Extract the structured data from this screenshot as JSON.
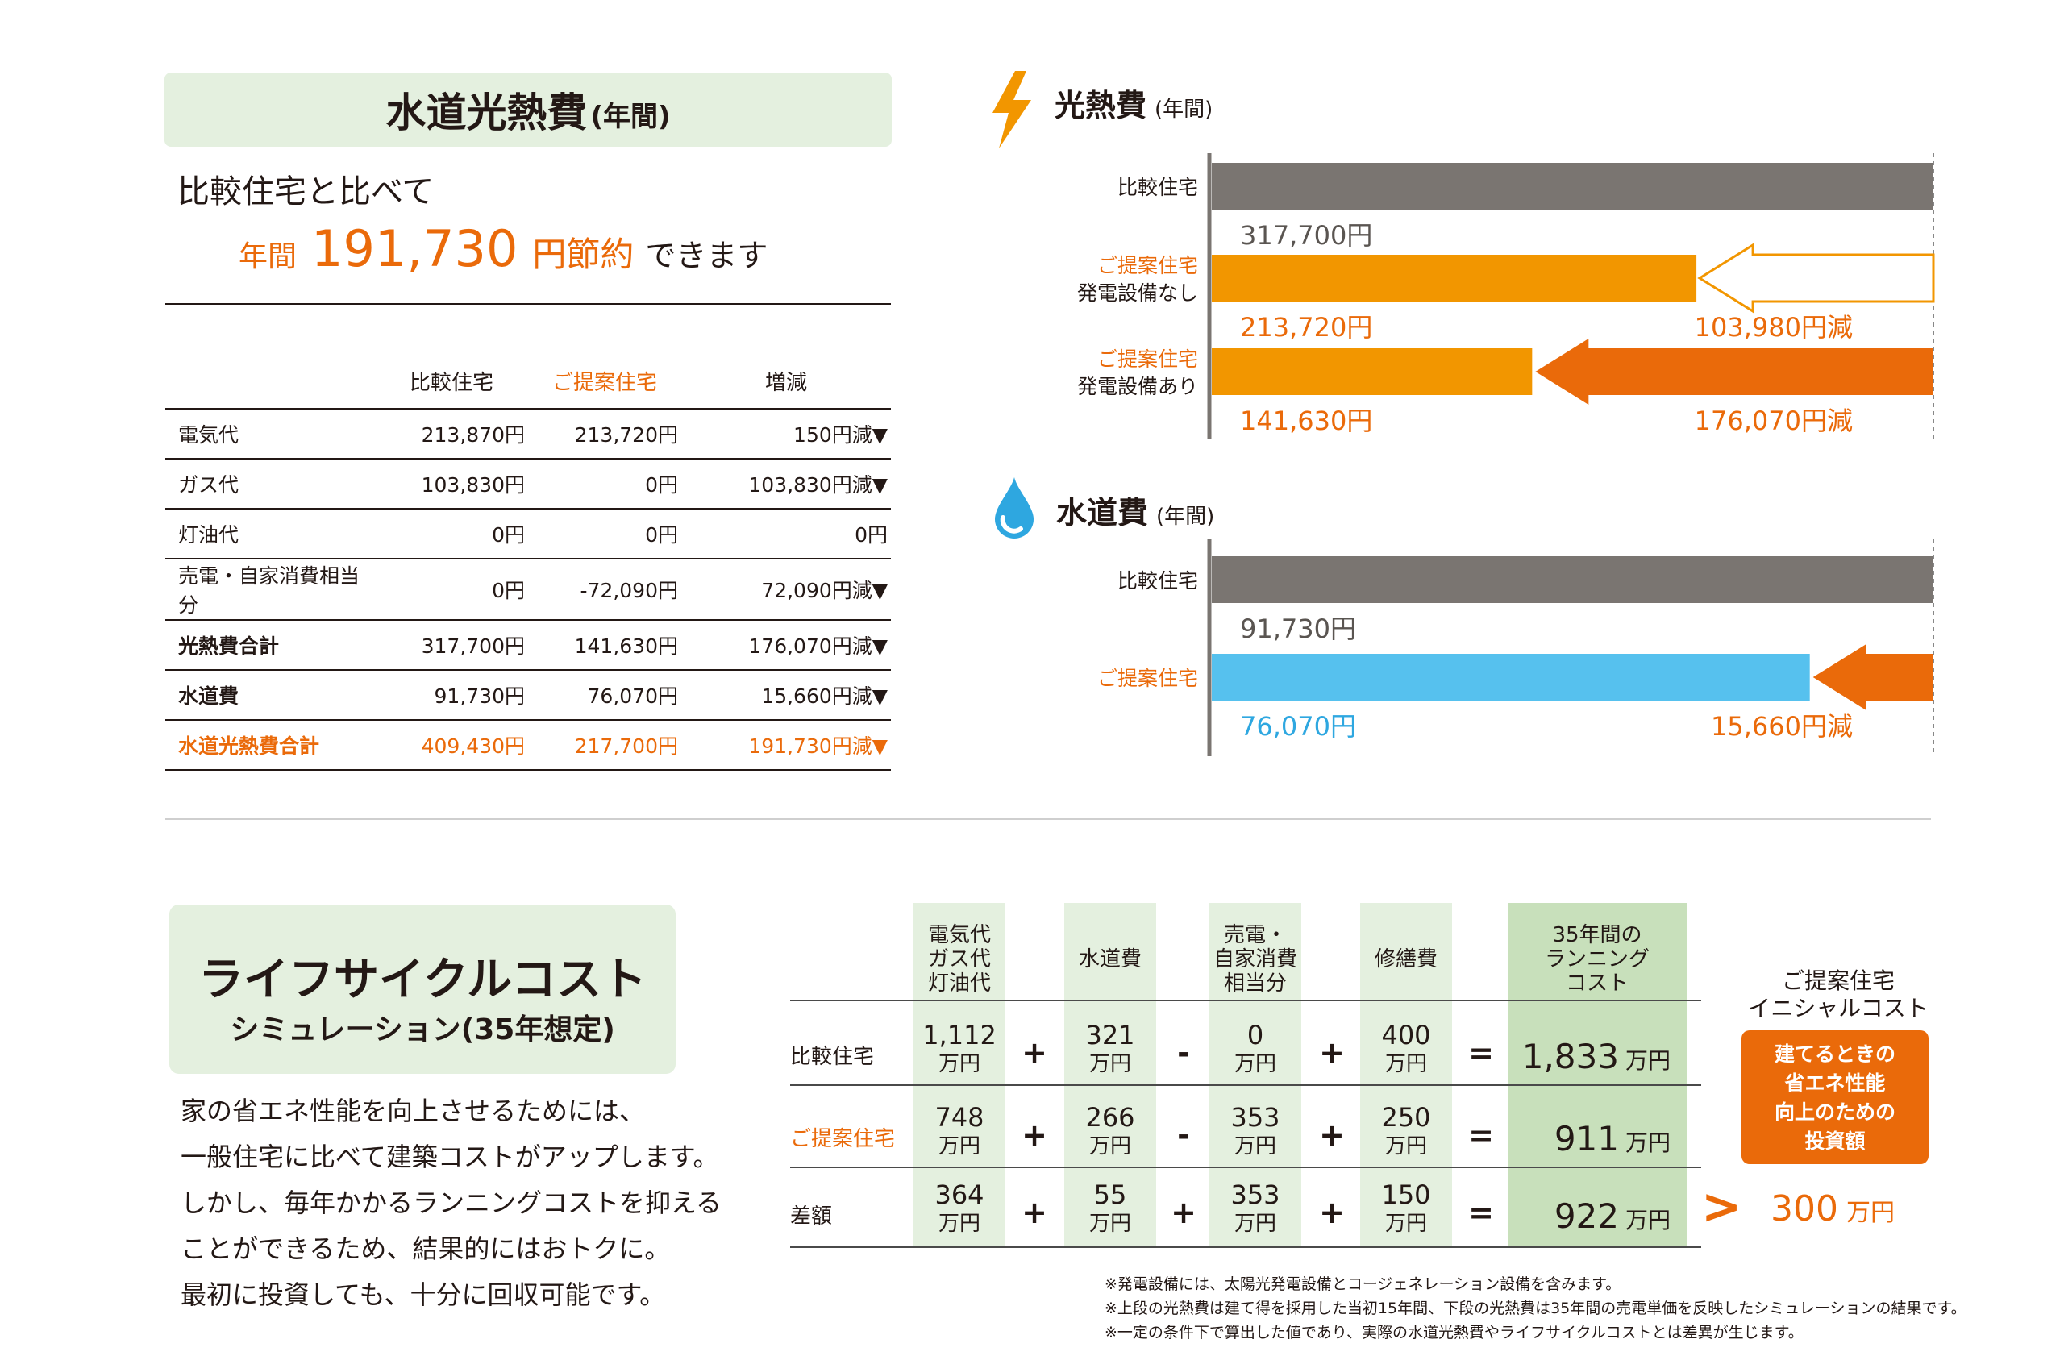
{
  "utility": {
    "title": "水道光熱費",
    "title_sub": "(年間)",
    "compare_text": "比較住宅と比べて",
    "saving_prefix": "年間",
    "saving_amount": "191,730",
    "saving_suffix": "円節約",
    "saving_tail": "できます",
    "table": {
      "headers": [
        "",
        "比較住宅",
        "ご提案住宅",
        "増減"
      ],
      "rows": [
        {
          "label": "電気代",
          "compare": "213,870円",
          "proposal": "213,720円",
          "diff": "150円減▼"
        },
        {
          "label": "ガス代",
          "compare": "103,830円",
          "proposal": "0円",
          "diff": "103,830円減▼"
        },
        {
          "label": "灯油代",
          "compare": "0円",
          "proposal": "0円",
          "diff": "0円"
        },
        {
          "label": "売電・自家消費相当分",
          "compare": "0円",
          "proposal": "-72,090円",
          "diff": "72,090円減▼"
        },
        {
          "label": "光熱費合計",
          "compare": "317,700円",
          "proposal": "141,630円",
          "diff": "176,070円減▼"
        },
        {
          "label": "水道費",
          "compare": "91,730円",
          "proposal": "76,070円",
          "diff": "15,660円減▼"
        },
        {
          "label": "水道光熱費合計",
          "compare": "409,430円",
          "proposal": "217,700円",
          "diff": "191,730円減▼"
        }
      ]
    }
  },
  "chart_data": [
    {
      "type": "bar",
      "title": "光熱費",
      "subtitle": "(年間)",
      "orientation": "horizontal",
      "categories": [
        "比較住宅",
        "ご提案住宅 発電設備なし",
        "ご提案住宅 発電設備あり"
      ],
      "category_lines": [
        [
          "比較住宅"
        ],
        [
          "ご提案住宅",
          "発電設備なし"
        ],
        [
          "ご提案住宅",
          "発電設備あり"
        ]
      ],
      "values": [
        317700,
        213720,
        141630
      ],
      "value_labels": [
        "317,700円",
        "213,720円",
        "141,630円"
      ],
      "reductions": [
        null,
        103980,
        176070
      ],
      "reduction_labels": [
        null,
        "103,980円減",
        "176,070円減"
      ],
      "colors": [
        "#7a7571",
        "#f29600",
        "#f29600"
      ],
      "label_colors": [
        "#5a5551",
        "#ea6a0a",
        "#ea6a0a"
      ],
      "arrow_styles": [
        null,
        "outline",
        "solid"
      ],
      "xlim": [
        0,
        317700
      ],
      "icon": "lightning-icon"
    },
    {
      "type": "bar",
      "title": "水道費",
      "subtitle": "(年間)",
      "orientation": "horizontal",
      "categories": [
        "比較住宅",
        "ご提案住宅"
      ],
      "category_lines": [
        [
          "比較住宅"
        ],
        [
          "ご提案住宅"
        ]
      ],
      "values": [
        91730,
        76070
      ],
      "value_labels": [
        "91,730円",
        "76,070円"
      ],
      "reductions": [
        null,
        15660
      ],
      "reduction_labels": [
        null,
        "15,660円減"
      ],
      "colors": [
        "#7a7571",
        "#56c1ee"
      ],
      "label_colors": [
        "#5a5551",
        "#2ea7e0"
      ],
      "arrow_styles": [
        null,
        "solid"
      ],
      "xlim": [
        0,
        91730
      ],
      "icon": "water-drop-icon"
    },
    {
      "type": "table",
      "title": "ライフサイクルコスト",
      "subtitle": "シミュレーション(35年想定)",
      "columns": [
        "電気代 ガス代 灯油代",
        "水道費",
        "売電・自家消費相当分",
        "修繕費",
        "35年間のランニングコスト"
      ],
      "rows": [
        {
          "label": "比較住宅",
          "values": [
            1112,
            321,
            0,
            400,
            1833
          ],
          "operators": [
            "+",
            "-",
            "+",
            "="
          ]
        },
        {
          "label": "ご提案住宅",
          "values": [
            748,
            266,
            353,
            250,
            911
          ],
          "operators": [
            "+",
            "-",
            "+",
            "="
          ]
        },
        {
          "label": "差額",
          "values": [
            364,
            55,
            353,
            150,
            922
          ],
          "operators": [
            "+",
            "+",
            "+",
            "="
          ]
        }
      ],
      "unit": "万円",
      "initial_cost": 300
    }
  ],
  "lifecycle": {
    "title": "ライフサイクルコスト",
    "subtitle": "シミュレーション(35年想定)",
    "description": [
      "家の省エネ性能を向上させるためには、",
      "一般住宅に比べて建築コストがアップします。",
      "しかし、毎年かかるランニングコストを抑える",
      "ことができるため、結果的にはおトクに。",
      "最初に投資しても、十分に回収可能です。"
    ],
    "col_headers": [
      [
        "電気代",
        "ガス代",
        "灯油代"
      ],
      [
        "水道費"
      ],
      [
        "売電・",
        "自家消費",
        "相当分"
      ],
      [
        "修繕費"
      ],
      [
        "35年間の",
        "ランニング",
        "コスト"
      ]
    ],
    "row_labels": [
      "比較住宅",
      "ご提案住宅",
      "差額"
    ],
    "cells": [
      [
        "1,112",
        "321",
        "0",
        "400"
      ],
      [
        "748",
        "266",
        "353",
        "250"
      ],
      [
        "364",
        "55",
        "353",
        "150"
      ]
    ],
    "operators": [
      [
        "+",
        "-",
        "+",
        "="
      ],
      [
        "+",
        "-",
        "+",
        "="
      ],
      [
        "+",
        "+",
        "+",
        "="
      ]
    ],
    "running_totals": [
      "1,833",
      "911",
      "922"
    ],
    "unit": "万円",
    "initial_cost_title": [
      "ご提案住宅",
      "イニシャルコスト"
    ],
    "initial_cost_box": [
      "建てるときの",
      "省エネ性能",
      "向上のための",
      "投資額"
    ],
    "gt_symbol": ">",
    "initial_cost_value": "300",
    "initial_cost_unit": "万円",
    "accent_color": "#ea6a0a"
  },
  "notes": [
    "※発電設備には、太陽光発電設備とコージェネレーション設備を含みます。",
    "※上段の光熱費は建て得を採用した当初15年間、下段の光熱費は35年間の売電単価を反映したシミュレーションの結果です。",
    "※一定の条件下で算出した値であり、実際の水道光熱費やライフサイクルコストとは差異が生じます。"
  ]
}
